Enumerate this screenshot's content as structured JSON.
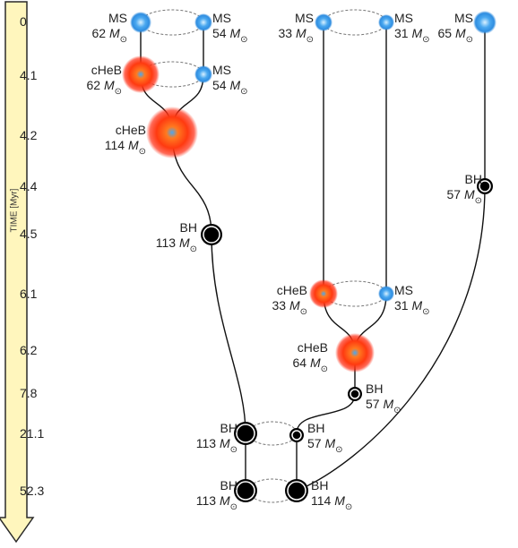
{
  "axis": {
    "label": "TIME [Myr]"
  },
  "times": [
    "0",
    "4.1",
    "4.2",
    "4.4",
    "4.5",
    "6.1",
    "6.2",
    "7.8",
    "21.1",
    "52.3"
  ],
  "mass_unit": "M",
  "sun_symbol": "⊙",
  "labels": {
    "a_ms1": {
      "type": "MS",
      "mass": "62"
    },
    "a_ms2": {
      "type": "MS",
      "mass": "54"
    },
    "a_che": {
      "type": "cHeB",
      "mass": "62"
    },
    "a_ms3": {
      "type": "MS",
      "mass": "54"
    },
    "a_mrg": {
      "type": "cHeB",
      "mass": "114"
    },
    "a_bh": {
      "type": "BH",
      "mass": "113"
    },
    "b_ms1": {
      "type": "MS",
      "mass": "33"
    },
    "b_ms2": {
      "type": "MS",
      "mass": "31"
    },
    "b_che": {
      "type": "cHeB",
      "mass": "33"
    },
    "b_ms3": {
      "type": "MS",
      "mass": "31"
    },
    "b_mrg": {
      "type": "cHeB",
      "mass": "64"
    },
    "b_bh": {
      "type": "BH",
      "mass": "57"
    },
    "c_ms": {
      "type": "MS",
      "mass": "65"
    },
    "c_bh": {
      "type": "BH",
      "mass": "57"
    },
    "d_bh1": {
      "type": "BH",
      "mass": "113"
    },
    "d_bh2": {
      "type": "BH",
      "mass": "57"
    },
    "e_bh1": {
      "type": "BH",
      "mass": "113"
    },
    "e_bh2": {
      "type": "BH",
      "mass": "114"
    }
  },
  "colors": {
    "arrow_fill": "#fff6bd",
    "ms": "#4aa8f0",
    "cheb": "#ff3a10",
    "bh": "#000000"
  }
}
